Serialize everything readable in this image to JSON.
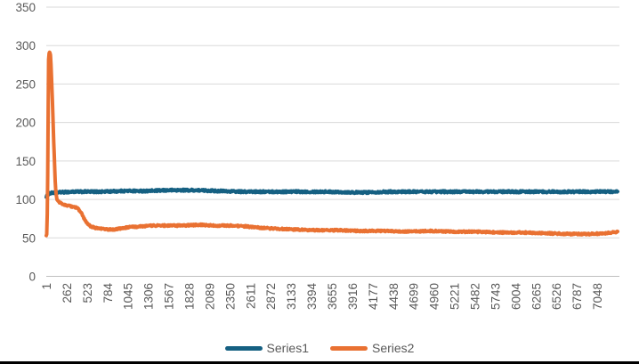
{
  "window": {
    "bottom_border_color": "#000000",
    "background": "#FFFFFF"
  },
  "chart_data": {
    "type": "line",
    "title": "",
    "xlabel": "",
    "ylabel": "",
    "ylim": [
      0,
      350
    ],
    "yticks": [
      0,
      50,
      100,
      150,
      200,
      250,
      300,
      350
    ],
    "x_start": 1,
    "x_end": 7309,
    "xtick_interval": 261,
    "xtick_labels": [
      "1",
      "262",
      "523",
      "784",
      "1045",
      "1306",
      "1567",
      "1828",
      "2089",
      "2350",
      "2611",
      "2872",
      "3133",
      "3394",
      "3655",
      "3916",
      "4177",
      "4438",
      "4699",
      "4960",
      "5221",
      "5482",
      "5743",
      "6004",
      "6265",
      "6526",
      "6787",
      "7048"
    ],
    "grid": "horizontal",
    "legend_position": "bottom",
    "colors": {
      "grid": "#D9D9D9",
      "axis_line": "#BFBFBF",
      "tick_label": "#595959",
      "legend_text": "#595959",
      "background": "#FFFFFF"
    },
    "series": [
      {
        "name": "Series1",
        "color": "#156082",
        "stroke_width": 4,
        "jitter": 1.2,
        "points": [
          [
            1,
            104
          ],
          [
            40,
            108
          ],
          [
            120,
            109
          ],
          [
            350,
            110
          ],
          [
            700,
            110
          ],
          [
            1000,
            111
          ],
          [
            1300,
            111
          ],
          [
            1600,
            112
          ],
          [
            1900,
            112
          ],
          [
            2200,
            111
          ],
          [
            2500,
            110
          ],
          [
            2800,
            110
          ],
          [
            3200,
            110
          ],
          [
            3600,
            110
          ],
          [
            4000,
            109
          ],
          [
            4400,
            110
          ],
          [
            4800,
            110
          ],
          [
            5200,
            110
          ],
          [
            5600,
            110
          ],
          [
            6000,
            110
          ],
          [
            6400,
            110
          ],
          [
            6800,
            110
          ],
          [
            7100,
            110
          ],
          [
            7309,
            110
          ]
        ]
      },
      {
        "name": "Series2",
        "color": "#E97132",
        "stroke_width": 4,
        "jitter": 1.0,
        "points": [
          [
            1,
            52
          ],
          [
            10,
            55
          ],
          [
            20,
            140
          ],
          [
            30,
            280
          ],
          [
            40,
            293
          ],
          [
            55,
            288
          ],
          [
            70,
            255
          ],
          [
            85,
            210
          ],
          [
            100,
            165
          ],
          [
            112,
            130
          ],
          [
            125,
            107
          ],
          [
            140,
            100
          ],
          [
            160,
            97
          ],
          [
            190,
            95
          ],
          [
            230,
            93
          ],
          [
            270,
            92
          ],
          [
            320,
            91
          ],
          [
            370,
            90
          ],
          [
            410,
            88
          ],
          [
            450,
            82
          ],
          [
            490,
            74
          ],
          [
            530,
            68
          ],
          [
            570,
            65
          ],
          [
            630,
            63
          ],
          [
            700,
            62
          ],
          [
            780,
            61
          ],
          [
            880,
            61
          ],
          [
            980,
            63
          ],
          [
            1080,
            64
          ],
          [
            1200,
            65
          ],
          [
            1350,
            66
          ],
          [
            1550,
            66
          ],
          [
            1750,
            66
          ],
          [
            1950,
            67
          ],
          [
            2150,
            66
          ],
          [
            2350,
            66
          ],
          [
            2550,
            65
          ],
          [
            2750,
            63
          ],
          [
            2950,
            62
          ],
          [
            3150,
            61
          ],
          [
            3400,
            60
          ],
          [
            3700,
            60
          ],
          [
            4000,
            59
          ],
          [
            4300,
            59
          ],
          [
            4600,
            58
          ],
          [
            4900,
            59
          ],
          [
            5200,
            58
          ],
          [
            5500,
            58
          ],
          [
            5800,
            57
          ],
          [
            6100,
            57
          ],
          [
            6400,
            56
          ],
          [
            6700,
            55
          ],
          [
            6950,
            55
          ],
          [
            7150,
            56
          ],
          [
            7309,
            58
          ]
        ]
      }
    ]
  }
}
